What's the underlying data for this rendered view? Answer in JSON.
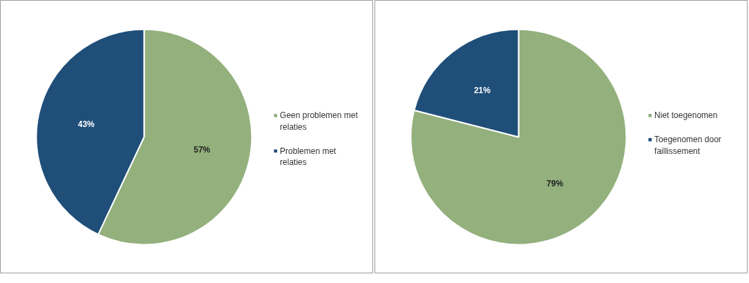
{
  "chart_data": [
    {
      "type": "pie",
      "categories": [
        "Geen problemen met relaties",
        "Problemen met relaties"
      ],
      "values": [
        57,
        43
      ],
      "colors": [
        "#93b07d",
        "#1f4e79"
      ],
      "value_labels": [
        "57%",
        "43%"
      ],
      "legend": "right"
    },
    {
      "type": "pie",
      "categories": [
        "Niet toegenomen",
        "Toegenomen door faillissement"
      ],
      "values": [
        79,
        21
      ],
      "colors": [
        "#93b07d",
        "#1f4e79"
      ],
      "value_labels": [
        "79%",
        "21%"
      ],
      "legend": "right"
    }
  ]
}
